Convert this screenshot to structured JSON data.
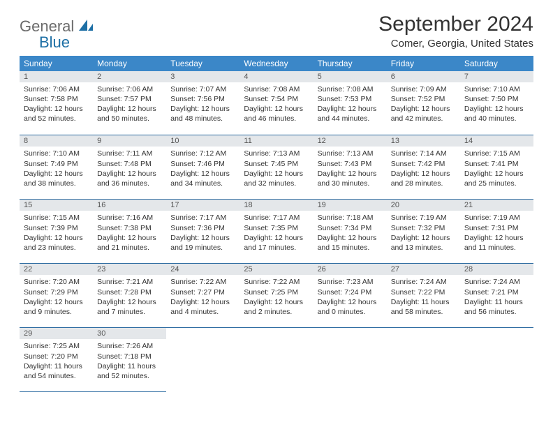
{
  "logo": {
    "line1": "General",
    "line2": "Blue"
  },
  "title": "September 2024",
  "location": "Comer, Georgia, United States",
  "colors": {
    "header_bg": "#3b87c8",
    "header_text": "#ffffff",
    "daynum_bg": "#e4e7ea",
    "row_border": "#2b6aa0",
    "body_text": "#333333",
    "logo_gray": "#6b6b6b",
    "logo_blue": "#1d6fa5",
    "page_bg": "#ffffff"
  },
  "weekdays": [
    "Sunday",
    "Monday",
    "Tuesday",
    "Wednesday",
    "Thursday",
    "Friday",
    "Saturday"
  ],
  "weeks": [
    [
      {
        "day": "1",
        "sunrise": "Sunrise: 7:06 AM",
        "sunset": "Sunset: 7:58 PM",
        "daylight": "Daylight: 12 hours and 52 minutes."
      },
      {
        "day": "2",
        "sunrise": "Sunrise: 7:06 AM",
        "sunset": "Sunset: 7:57 PM",
        "daylight": "Daylight: 12 hours and 50 minutes."
      },
      {
        "day": "3",
        "sunrise": "Sunrise: 7:07 AM",
        "sunset": "Sunset: 7:56 PM",
        "daylight": "Daylight: 12 hours and 48 minutes."
      },
      {
        "day": "4",
        "sunrise": "Sunrise: 7:08 AM",
        "sunset": "Sunset: 7:54 PM",
        "daylight": "Daylight: 12 hours and 46 minutes."
      },
      {
        "day": "5",
        "sunrise": "Sunrise: 7:08 AM",
        "sunset": "Sunset: 7:53 PM",
        "daylight": "Daylight: 12 hours and 44 minutes."
      },
      {
        "day": "6",
        "sunrise": "Sunrise: 7:09 AM",
        "sunset": "Sunset: 7:52 PM",
        "daylight": "Daylight: 12 hours and 42 minutes."
      },
      {
        "day": "7",
        "sunrise": "Sunrise: 7:10 AM",
        "sunset": "Sunset: 7:50 PM",
        "daylight": "Daylight: 12 hours and 40 minutes."
      }
    ],
    [
      {
        "day": "8",
        "sunrise": "Sunrise: 7:10 AM",
        "sunset": "Sunset: 7:49 PM",
        "daylight": "Daylight: 12 hours and 38 minutes."
      },
      {
        "day": "9",
        "sunrise": "Sunrise: 7:11 AM",
        "sunset": "Sunset: 7:48 PM",
        "daylight": "Daylight: 12 hours and 36 minutes."
      },
      {
        "day": "10",
        "sunrise": "Sunrise: 7:12 AM",
        "sunset": "Sunset: 7:46 PM",
        "daylight": "Daylight: 12 hours and 34 minutes."
      },
      {
        "day": "11",
        "sunrise": "Sunrise: 7:13 AM",
        "sunset": "Sunset: 7:45 PM",
        "daylight": "Daylight: 12 hours and 32 minutes."
      },
      {
        "day": "12",
        "sunrise": "Sunrise: 7:13 AM",
        "sunset": "Sunset: 7:43 PM",
        "daylight": "Daylight: 12 hours and 30 minutes."
      },
      {
        "day": "13",
        "sunrise": "Sunrise: 7:14 AM",
        "sunset": "Sunset: 7:42 PM",
        "daylight": "Daylight: 12 hours and 28 minutes."
      },
      {
        "day": "14",
        "sunrise": "Sunrise: 7:15 AM",
        "sunset": "Sunset: 7:41 PM",
        "daylight": "Daylight: 12 hours and 25 minutes."
      }
    ],
    [
      {
        "day": "15",
        "sunrise": "Sunrise: 7:15 AM",
        "sunset": "Sunset: 7:39 PM",
        "daylight": "Daylight: 12 hours and 23 minutes."
      },
      {
        "day": "16",
        "sunrise": "Sunrise: 7:16 AM",
        "sunset": "Sunset: 7:38 PM",
        "daylight": "Daylight: 12 hours and 21 minutes."
      },
      {
        "day": "17",
        "sunrise": "Sunrise: 7:17 AM",
        "sunset": "Sunset: 7:36 PM",
        "daylight": "Daylight: 12 hours and 19 minutes."
      },
      {
        "day": "18",
        "sunrise": "Sunrise: 7:17 AM",
        "sunset": "Sunset: 7:35 PM",
        "daylight": "Daylight: 12 hours and 17 minutes."
      },
      {
        "day": "19",
        "sunrise": "Sunrise: 7:18 AM",
        "sunset": "Sunset: 7:34 PM",
        "daylight": "Daylight: 12 hours and 15 minutes."
      },
      {
        "day": "20",
        "sunrise": "Sunrise: 7:19 AM",
        "sunset": "Sunset: 7:32 PM",
        "daylight": "Daylight: 12 hours and 13 minutes."
      },
      {
        "day": "21",
        "sunrise": "Sunrise: 7:19 AM",
        "sunset": "Sunset: 7:31 PM",
        "daylight": "Daylight: 12 hours and 11 minutes."
      }
    ],
    [
      {
        "day": "22",
        "sunrise": "Sunrise: 7:20 AM",
        "sunset": "Sunset: 7:29 PM",
        "daylight": "Daylight: 12 hours and 9 minutes."
      },
      {
        "day": "23",
        "sunrise": "Sunrise: 7:21 AM",
        "sunset": "Sunset: 7:28 PM",
        "daylight": "Daylight: 12 hours and 7 minutes."
      },
      {
        "day": "24",
        "sunrise": "Sunrise: 7:22 AM",
        "sunset": "Sunset: 7:27 PM",
        "daylight": "Daylight: 12 hours and 4 minutes."
      },
      {
        "day": "25",
        "sunrise": "Sunrise: 7:22 AM",
        "sunset": "Sunset: 7:25 PM",
        "daylight": "Daylight: 12 hours and 2 minutes."
      },
      {
        "day": "26",
        "sunrise": "Sunrise: 7:23 AM",
        "sunset": "Sunset: 7:24 PM",
        "daylight": "Daylight: 12 hours and 0 minutes."
      },
      {
        "day": "27",
        "sunrise": "Sunrise: 7:24 AM",
        "sunset": "Sunset: 7:22 PM",
        "daylight": "Daylight: 11 hours and 58 minutes."
      },
      {
        "day": "28",
        "sunrise": "Sunrise: 7:24 AM",
        "sunset": "Sunset: 7:21 PM",
        "daylight": "Daylight: 11 hours and 56 minutes."
      }
    ],
    [
      {
        "day": "29",
        "sunrise": "Sunrise: 7:25 AM",
        "sunset": "Sunset: 7:20 PM",
        "daylight": "Daylight: 11 hours and 54 minutes."
      },
      {
        "day": "30",
        "sunrise": "Sunrise: 7:26 AM",
        "sunset": "Sunset: 7:18 PM",
        "daylight": "Daylight: 11 hours and 52 minutes."
      },
      null,
      null,
      null,
      null,
      null
    ]
  ]
}
